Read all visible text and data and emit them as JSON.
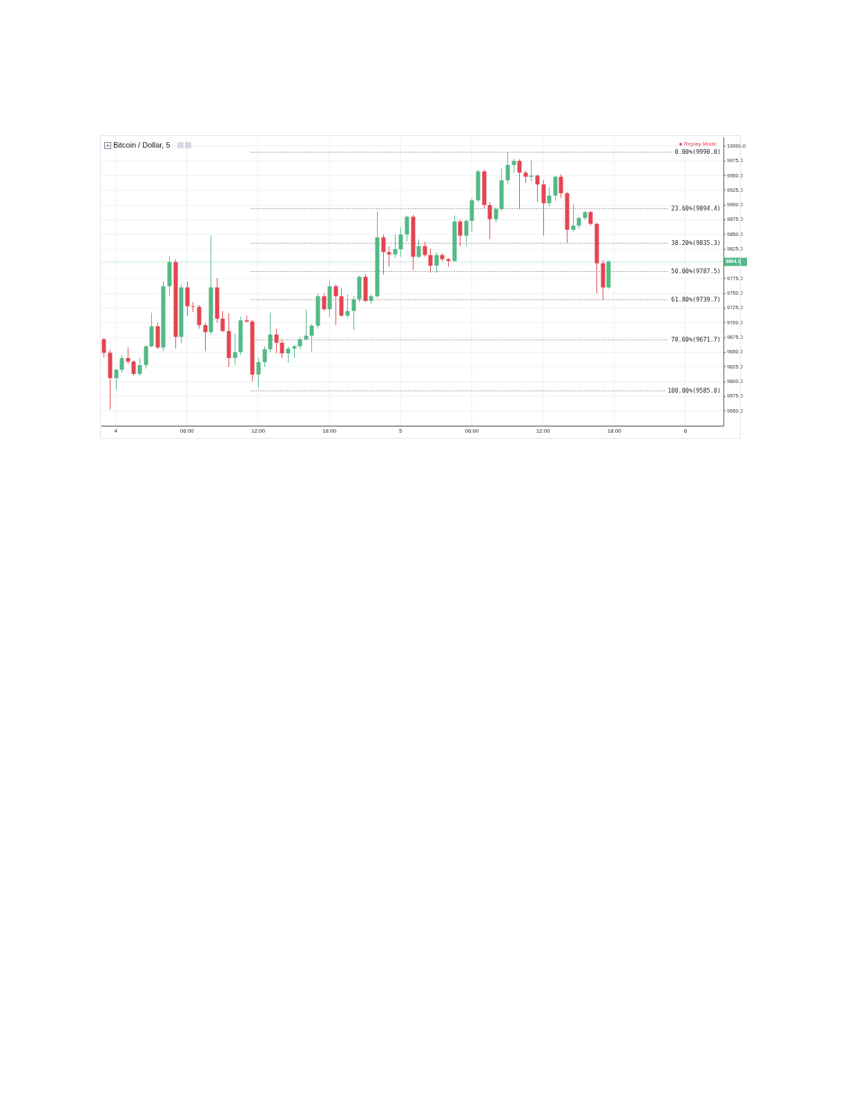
{
  "chart_data": {
    "type": "candlestick",
    "title": "Bitcoin / Dollar, 5",
    "annotations": [
      "Replay Mode"
    ],
    "x": [
      "--05-03T23:00",
      "--05-03T23:30",
      "--05-04T00:00",
      "--05-04T00:30",
      "--05-04T01:00",
      "--05-04T01:30",
      "--05-04T02:00",
      "--05-04T02:30",
      "--05-04T03:00",
      "--05-04T03:30",
      "--05-04T04:00",
      "--05-04T04:30",
      "--05-04T05:00",
      "--05-04T05:30",
      "--05-04T06:00",
      "--05-04T06:30",
      "--05-04T07:00",
      "--05-04T07:30",
      "--05-04T08:00",
      "--05-04T08:30",
      "--05-04T09:00",
      "--05-04T09:30",
      "--05-04T10:00",
      "--05-04T10:30",
      "--05-04T11:00",
      "--05-04T11:30",
      "--05-04T12:00",
      "--05-04T12:30",
      "--05-04T13:00",
      "--05-04T13:30",
      "--05-04T14:00",
      "--05-04T14:30",
      "--05-04T15:00",
      "--05-04T15:30",
      "--05-04T16:00",
      "--05-04T16:30",
      "--05-04T17:00",
      "--05-04T17:30",
      "--05-04T18:00",
      "--05-04T18:30",
      "--05-04T19:00",
      "--05-04T19:30",
      "--05-04T20:00",
      "--05-04T20:30",
      "--05-04T21:00",
      "--05-04T21:30",
      "--05-04T22:00",
      "--05-04T22:30",
      "--05-04T23:00",
      "--05-04T23:30",
      "--05-05T00:00",
      "--05-05T00:30",
      "--05-05T01:00",
      "--05-05T01:30",
      "--05-05T02:00",
      "--05-05T02:30",
      "--05-05T03:00",
      "--05-05T03:30",
      "--05-05T04:00",
      "--05-05T04:30",
      "--05-05T05:00",
      "--05-05T05:30",
      "--05-05T06:00",
      "--05-05T06:30",
      "--05-05T07:00",
      "--05-05T07:30",
      "--05-05T08:00",
      "--05-05T08:30",
      "--05-05T09:00",
      "--05-05T09:30",
      "--05-05T10:00",
      "--05-05T10:30",
      "--05-05T11:00",
      "--05-05T11:30",
      "--05-05T12:00",
      "--05-05T12:30",
      "--05-05T13:00",
      "--05-05T13:30",
      "--05-05T14:00",
      "--05-05T14:30",
      "--05-05T15:00",
      "--05-05T15:30",
      "--05-05T16:00",
      "--05-05T16:30",
      "--05-05T17:00",
      "--05-05T17:30"
    ],
    "ohlc": [
      [
        9672,
        9674,
        9641,
        9649
      ],
      [
        9649,
        9654,
        9553,
        9606
      ],
      [
        9606,
        9622,
        9586,
        9620
      ],
      [
        9620,
        9645,
        9615,
        9640
      ],
      [
        9640,
        9658,
        9630,
        9634
      ],
      [
        9634,
        9636,
        9610,
        9613
      ],
      [
        9613,
        9640,
        9610,
        9628
      ],
      [
        9628,
        9662,
        9622,
        9660
      ],
      [
        9660,
        9717,
        9658,
        9694
      ],
      [
        9694,
        9700,
        9655,
        9658
      ],
      [
        9658,
        9770,
        9652,
        9762
      ],
      [
        9762,
        9813,
        9745,
        9803
      ],
      [
        9803,
        9808,
        9656,
        9676
      ],
      [
        9676,
        9765,
        9665,
        9760
      ],
      [
        9760,
        9770,
        9712,
        9728
      ],
      [
        9728,
        9735,
        9718,
        9727
      ],
      [
        9727,
        9730,
        9690,
        9696
      ],
      [
        9696,
        9700,
        9652,
        9684
      ],
      [
        9684,
        9848,
        9680,
        9760
      ],
      [
        9760,
        9776,
        9700,
        9707
      ],
      [
        9707,
        9720,
        9684,
        9686
      ],
      [
        9686,
        9716,
        9625,
        9640
      ],
      [
        9640,
        9682,
        9628,
        9650
      ],
      [
        9650,
        9710,
        9645,
        9704
      ],
      [
        9704,
        9712,
        9700,
        9702
      ],
      [
        9702,
        9705,
        9600,
        9612
      ],
      [
        9612,
        9640,
        9590,
        9633
      ],
      [
        9633,
        9660,
        9625,
        9655
      ],
      [
        9655,
        9717,
        9650,
        9680
      ],
      [
        9680,
        9690,
        9648,
        9666
      ],
      [
        9666,
        9672,
        9640,
        9648
      ],
      [
        9648,
        9660,
        9632,
        9656
      ],
      [
        9656,
        9662,
        9640,
        9660
      ],
      [
        9660,
        9676,
        9655,
        9672
      ],
      [
        9672,
        9722,
        9670,
        9678
      ],
      [
        9678,
        9698,
        9650,
        9695
      ],
      [
        9695,
        9750,
        9690,
        9745
      ],
      [
        9745,
        9750,
        9720,
        9723
      ],
      [
        9723,
        9772,
        9710,
        9762
      ],
      [
        9762,
        9765,
        9696,
        9745
      ],
      [
        9745,
        9758,
        9710,
        9712
      ],
      [
        9712,
        9748,
        9708,
        9720
      ],
      [
        9720,
        9745,
        9688,
        9740
      ],
      [
        9740,
        9780,
        9735,
        9778
      ],
      [
        9778,
        9783,
        9735,
        9737
      ],
      [
        9737,
        9748,
        9733,
        9745
      ],
      [
        9745,
        9889,
        9742,
        9845
      ],
      [
        9845,
        9850,
        9782,
        9820
      ],
      [
        9820,
        9830,
        9795,
        9816
      ],
      [
        9816,
        9850,
        9810,
        9825
      ],
      [
        9825,
        9862,
        9812,
        9850
      ],
      [
        9850,
        9882,
        9838,
        9880
      ],
      [
        9880,
        9883,
        9789,
        9812
      ],
      [
        9812,
        9842,
        9810,
        9830
      ],
      [
        9830,
        9838,
        9812,
        9815
      ],
      [
        9815,
        9826,
        9785,
        9797
      ],
      [
        9797,
        9820,
        9785,
        9815
      ],
      [
        9815,
        9818,
        9805,
        9808
      ],
      [
        9808,
        9810,
        9795,
        9805
      ],
      [
        9805,
        9882,
        9803,
        9872
      ],
      [
        9872,
        9875,
        9830,
        9848
      ],
      [
        9848,
        9876,
        9830,
        9873
      ],
      [
        9873,
        9912,
        9855,
        9908
      ],
      [
        9908,
        9960,
        9905,
        9957
      ],
      [
        9957,
        9960,
        9895,
        9900
      ],
      [
        9900,
        9905,
        9842,
        9876
      ],
      [
        9876,
        9896,
        9870,
        9893
      ],
      [
        9893,
        9962,
        9890,
        9942
      ],
      [
        9942,
        9990,
        9935,
        9968
      ],
      [
        9968,
        9978,
        9955,
        9975
      ],
      [
        9975,
        9978,
        9893,
        9955
      ],
      [
        9955,
        9958,
        9938,
        9948
      ],
      [
        9948,
        9976,
        9940,
        9950
      ],
      [
        9950,
        9952,
        9905,
        9935
      ],
      [
        9935,
        9942,
        9848,
        9903
      ],
      [
        9903,
        9930,
        9898,
        9916
      ],
      [
        9916,
        9950,
        9907,
        9948
      ],
      [
        9948,
        9952,
        9912,
        9920
      ],
      [
        9920,
        9922,
        9836,
        9858
      ],
      [
        9858,
        9901,
        9855,
        9865
      ],
      [
        9865,
        9880,
        9860,
        9878
      ],
      [
        9878,
        9890,
        9875,
        9888
      ],
      [
        9888,
        9890,
        9865,
        9868
      ],
      [
        9868,
        9870,
        9750,
        9801
      ],
      [
        9801,
        9806,
        9739,
        9760
      ],
      [
        9760,
        9806,
        9758,
        9804.1
      ]
    ],
    "colors": [
      "#e5454f",
      "#e5454f",
      "#53b987",
      "#53b987",
      "#e5454f",
      "#e5454f",
      "#53b987",
      "#53b987",
      "#53b987",
      "#e5454f",
      "#53b987",
      "#53b987",
      "#e5454f",
      "#53b987",
      "#e5454f",
      "#e5454f",
      "#e5454f",
      "#e5454f",
      "#53b987",
      "#e5454f",
      "#e5454f",
      "#e5454f",
      "#53b987",
      "#53b987",
      "#e5454f",
      "#e5454f",
      "#53b987",
      "#53b987",
      "#53b987",
      "#e5454f",
      "#e5454f",
      "#53b987",
      "#53b987",
      "#53b987",
      "#53b987",
      "#53b987",
      "#53b987",
      "#e5454f",
      "#53b987",
      "#e5454f",
      "#e5454f",
      "#53b987",
      "#53b987",
      "#53b987",
      "#e5454f",
      "#53b987",
      "#53b987",
      "#e5454f",
      "#e5454f",
      "#53b987",
      "#53b987",
      "#53b987",
      "#e5454f",
      "#53b987",
      "#e5454f",
      "#e5454f",
      "#53b987",
      "#e5454f",
      "#e5454f",
      "#53b987",
      "#e5454f",
      "#53b987",
      "#53b987",
      "#53b987",
      "#e5454f",
      "#e5454f",
      "#53b987",
      "#53b987",
      "#53b987",
      "#53b987",
      "#e5454f",
      "#e5454f",
      "#53b987",
      "#e5454f",
      "#e5454f",
      "#53b987",
      "#53b987",
      "#e5454f",
      "#e5454f",
      "#53b987",
      "#53b987",
      "#53b987",
      "#e5454f",
      "#e5454f",
      "#e5454f",
      "#53b987"
    ],
    "xlim": [
      "--05-03T22:48",
      "--05-06T03:12"
    ],
    "xticks": [
      {
        "value": "--05-04T00:00",
        "label": "4"
      },
      {
        "value": "--05-04T06:00",
        "label": "06:00"
      },
      {
        "value": "--05-04T12:00",
        "label": "12:00"
      },
      {
        "value": "--05-04T18:00",
        "label": "18:00"
      },
      {
        "value": "--05-05T00:00",
        "label": "5"
      },
      {
        "value": "--05-05T06:00",
        "label": "06:00"
      },
      {
        "value": "--05-05T12:00",
        "label": "12:00"
      },
      {
        "value": "--05-05T18:00",
        "label": "18:00"
      },
      {
        "value": "--05-06T00:00",
        "label": "6"
      }
    ],
    "ylim": [
      9525,
      10015
    ],
    "yticks": [
      {
        "value": 9550,
        "label": "9550.0"
      },
      {
        "value": 9575,
        "label": "9575.0"
      },
      {
        "value": 9600,
        "label": "9600.0"
      },
      {
        "value": 9625,
        "label": "9625.0"
      },
      {
        "value": 9650,
        "label": "9650.0"
      },
      {
        "value": 9675,
        "label": "9675.0"
      },
      {
        "value": 9700,
        "label": "9700.0"
      },
      {
        "value": 9725,
        "label": "9725.0"
      },
      {
        "value": 9750,
        "label": "9750.0"
      },
      {
        "value": 9775,
        "label": "9775.0"
      },
      {
        "value": 9800,
        "label": null
      },
      {
        "value": 9825,
        "label": "9825.0"
      },
      {
        "value": 9850,
        "label": "9850.0"
      },
      {
        "value": 9875,
        "label": "9875.0"
      },
      {
        "value": 9900,
        "label": "9900.0"
      },
      {
        "value": 9925,
        "label": "9925.0"
      },
      {
        "value": 9950,
        "label": "9950.0"
      },
      {
        "value": 9975,
        "label": "9975.0"
      },
      {
        "value": 10000,
        "label": "10000.0"
      }
    ],
    "ref_lines": [
      {
        "axis": "y",
        "value": 9990,
        "label": "0.00%(9990.0)",
        "color": "#7a7a7a",
        "line_style": "dotted"
      },
      {
        "axis": "y",
        "value": 9894.4,
        "label": "23.60%(9894.4)",
        "color": "#7a7a7a",
        "line_style": "dotted"
      },
      {
        "axis": "y",
        "value": 9835.3,
        "label": "38.20%(9835.3)",
        "color": "#7a7a7a",
        "line_style": "dotted"
      },
      {
        "axis": "y",
        "value": 9787.5,
        "label": "50.00%(9787.5)",
        "color": "#7a7a7a",
        "line_style": "dotted"
      },
      {
        "axis": "y",
        "value": 9739.7,
        "label": "61.80%(9739.7)",
        "color": "#7a7a7a",
        "line_style": "dotted"
      },
      {
        "axis": "y",
        "value": 9671.7,
        "label": "78.60%(9671.7)",
        "color": "#7a7a7a",
        "line_style": "dotted"
      },
      {
        "axis": "y",
        "value": 9585,
        "label": "100.00%(9585.0)",
        "color": "#7a7a7a",
        "line_style": "dotted"
      },
      {
        "axis": "y",
        "value": 9804.1,
        "label": "9804.1",
        "color": "#53b987",
        "line_style": "solid"
      }
    ],
    "grid": true
  }
}
